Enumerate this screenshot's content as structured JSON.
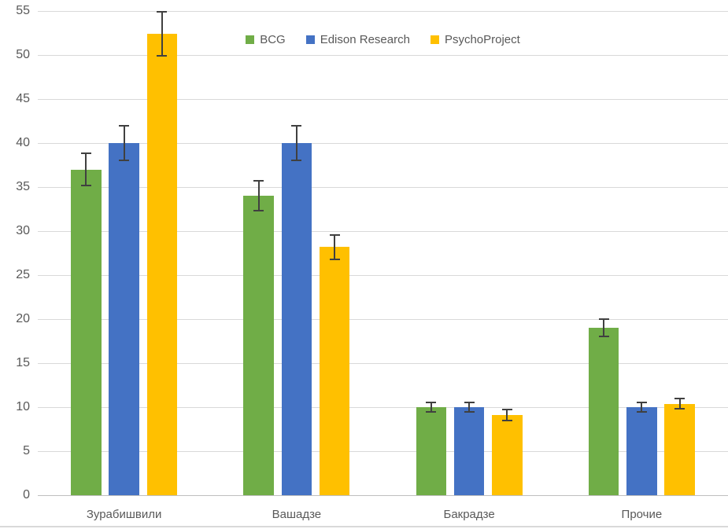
{
  "chart_data": {
    "type": "bar",
    "title": "",
    "categories": [
      "Зурабишвили",
      "Вашадзе",
      "Бакрадзе",
      "Прочие"
    ],
    "series": [
      {
        "name": "BCG",
        "color": "#70AD47",
        "values": [
          37,
          34,
          10,
          19
        ],
        "errors": [
          1.8,
          1.7,
          0.5,
          1.0
        ]
      },
      {
        "name": "Edison Research",
        "color": "#4472C4",
        "values": [
          40,
          40,
          10,
          10
        ],
        "errors": [
          2.0,
          2.0,
          0.5,
          0.5
        ]
      },
      {
        "name": "PsychoProject",
        "color": "#FFC000",
        "values": [
          52.4,
          28.2,
          9.1,
          10.4
        ],
        "errors": [
          2.5,
          1.4,
          0.6,
          0.6
        ]
      }
    ],
    "xlabel": "",
    "ylabel": "",
    "ylim": [
      0,
      55
    ],
    "ytick_step": 5,
    "yticks": [
      0,
      5,
      10,
      15,
      20,
      25,
      30,
      35,
      40,
      45,
      50,
      55
    ],
    "grid": true,
    "error_bars": true,
    "legend_position": "top-center",
    "colors": {
      "gridline": "#D9D9D9",
      "axis_line": "#BFBFBF",
      "error_bar": "#404040",
      "tick_label": "#595959",
      "legend_text": "#595959",
      "background": "#FFFFFF",
      "bottom_edge": "#D9D9D9"
    }
  }
}
